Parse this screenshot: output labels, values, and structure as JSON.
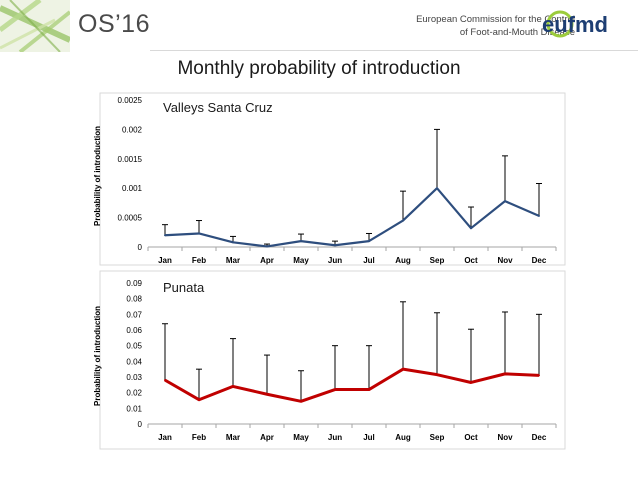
{
  "header": {
    "os_title": "OS’16",
    "commission_line1": "European Commission for the Control",
    "commission_line2": "of Foot-and-Mouth Disease",
    "logo_text": "eufmd"
  },
  "slide_title": "Monthly probability of introduction",
  "colors": {
    "series1": "#2e4e7e",
    "series2": "#c00000",
    "grid": "#bfbfbf",
    "errorbar": "#000000"
  },
  "chart_data": [
    {
      "type": "line",
      "title": "Valleys Santa Cruz",
      "ylabel": "Probability of introduction",
      "categories": [
        "Jan",
        "Feb",
        "Mar",
        "Apr",
        "May",
        "Jun",
        "Jul",
        "Aug",
        "Sep",
        "Oct",
        "Nov",
        "Dec"
      ],
      "values": [
        0.0002,
        0.00023,
        8e-05,
        1e-05,
        0.0001,
        3e-05,
        0.0001,
        0.00045,
        0.001,
        0.00032,
        0.00078,
        0.00053
      ],
      "upper": [
        0.00038,
        0.00045,
        0.00018,
        5e-05,
        0.00022,
        0.0001,
        0.00023,
        0.00095,
        0.002,
        0.00068,
        0.00155,
        0.00108
      ],
      "ylim": [
        0,
        0.0025
      ],
      "yticks": [
        0,
        0.0005,
        0.001,
        0.0015,
        0.002,
        0.0025
      ],
      "ytick_labels": [
        "0",
        "0.0005",
        "0.001",
        "0.0015",
        "0.002",
        "0.0025"
      ]
    },
    {
      "type": "line",
      "title": "Punata",
      "ylabel": "Probability of introduction",
      "categories": [
        "Jan",
        "Feb",
        "Mar",
        "Apr",
        "May",
        "Jun",
        "Jul",
        "Aug",
        "Sep",
        "Oct",
        "Nov",
        "Dec"
      ],
      "values": [
        0.028,
        0.0155,
        0.024,
        0.019,
        0.0145,
        0.022,
        0.022,
        0.035,
        0.0315,
        0.0265,
        0.032,
        0.031
      ],
      "upper": [
        0.064,
        0.035,
        0.0545,
        0.044,
        0.034,
        0.05,
        0.05,
        0.078,
        0.071,
        0.0605,
        0.0715,
        0.07
      ],
      "ylim": [
        0,
        0.09
      ],
      "yticks": [
        0,
        0.01,
        0.02,
        0.03,
        0.04,
        0.05,
        0.06,
        0.07,
        0.08,
        0.09
      ],
      "ytick_labels": [
        "0",
        "0.01",
        "0.02",
        "0.03",
        "0.04",
        "0.05",
        "0.06",
        "0.07",
        "0.08",
        "0.09"
      ]
    }
  ]
}
